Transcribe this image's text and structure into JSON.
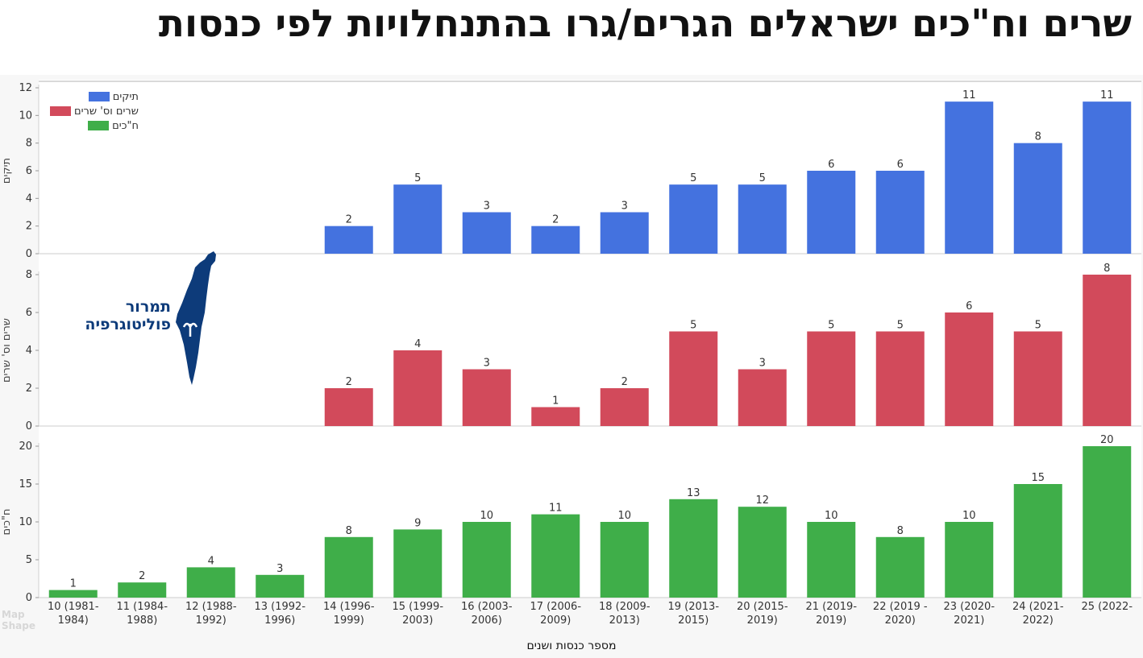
{
  "title": "שרים וח\"כים ישראלים הגרים/גרו בהתנחלויות לפי כנסות",
  "logo": {
    "line1": "תמרור",
    "line2": "פוליטוגרפיה"
  },
  "watermark": {
    "line1": "Map",
    "line2": "Shape"
  },
  "colors": {
    "tikim": "#4472df",
    "sarim": "#d24a5b",
    "mks": "#3fae49"
  },
  "chart_data": {
    "type": "bar",
    "xlabel": "מספר כנסות ושנים",
    "categories": [
      "10 (1981-1984)",
      "11 (1984-1988)",
      "12 (1988-1992)",
      "13 (1992-1996)",
      "14 (1996-1999)",
      "15 (1999-2003)",
      "16 (2003-2006)",
      "17 (2006-2009)",
      "18 (2009-2013)",
      "19 (2013-2015)",
      "20 (2015-2019)",
      "21 (2019-2019)",
      "22 (2019 - 2020)",
      "23 (2020-2021)",
      "24 (2021-2022)",
      "25 (2022-"
    ],
    "category_lines": [
      [
        "10 (1981-",
        "1984)"
      ],
      [
        "11 (1984-",
        "1988)"
      ],
      [
        "12 (1988-",
        "1992)"
      ],
      [
        "13 (1992-",
        "1996)"
      ],
      [
        "14 (1996-",
        "1999)"
      ],
      [
        "15 (1999-",
        "2003)"
      ],
      [
        "16 (2003-",
        "2006)"
      ],
      [
        "17 (2006-",
        "2009)"
      ],
      [
        "18 (2009-",
        "2013)"
      ],
      [
        "19 (2013-",
        "2015)"
      ],
      [
        "20 (2015-",
        "2019)"
      ],
      [
        "21 (2019-",
        "2019)"
      ],
      [
        "22 (2019 -",
        "2020)"
      ],
      [
        "23 (2020-",
        "2021)"
      ],
      [
        "24 (2021-",
        "2022)"
      ],
      [
        "25 (2022-",
        ""
      ]
    ],
    "legend_position": "top-left",
    "series": [
      {
        "name": "תיקים",
        "ylabel": "תיקים",
        "color": "#4472df",
        "ylim": [
          0,
          12
        ],
        "ticks": [
          0,
          2,
          4,
          6,
          8,
          10,
          12
        ],
        "values": [
          null,
          null,
          null,
          null,
          2,
          5,
          3,
          2,
          3,
          5,
          5,
          6,
          6,
          11,
          8,
          11
        ]
      },
      {
        "name": "שרים וס' שרים",
        "ylabel": "שרים וס' שרים",
        "color": "#d24a5b",
        "ylim": [
          0,
          8
        ],
        "ticks": [
          0,
          2,
          4,
          6,
          8
        ],
        "values": [
          null,
          null,
          null,
          null,
          2,
          4,
          3,
          1,
          2,
          5,
          3,
          5,
          5,
          6,
          5,
          8
        ]
      },
      {
        "name": "ח\"כים",
        "ylabel": "ח\"כים",
        "color": "#3fae49",
        "ylim": [
          0,
          20
        ],
        "ticks": [
          0,
          5,
          10,
          15,
          20
        ],
        "values": [
          1,
          2,
          4,
          3,
          8,
          9,
          10,
          11,
          10,
          13,
          12,
          10,
          8,
          10,
          15,
          20
        ]
      }
    ]
  }
}
